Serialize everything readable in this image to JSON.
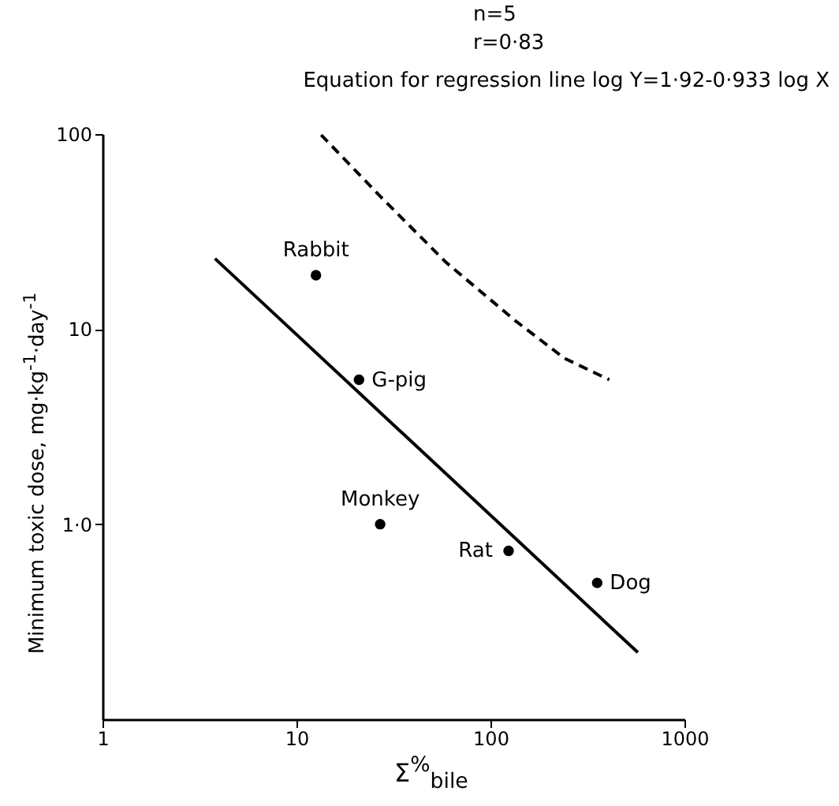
{
  "chart_data": {
    "type": "scatter",
    "title": "Equation for regression line log Y=1·92-0·933 log X",
    "xlabel": "Σ$^{%}$$_{bile}$",
    "ylabel": "Minimum toxic dose, mg·kg$^{-1}$·day$^{-1}$",
    "annotations": [
      "n=5",
      "r=0·83",
      {
        "text": "Rabbit",
        "x": 12.6,
        "y": 18.9
      },
      {
        "text": "G-pig",
        "x": 21,
        "y": 5.5
      },
      {
        "text": "Monkey",
        "x": 27,
        "y": 1.0
      },
      {
        "text": "Rat",
        "x": 124,
        "y": 0.73
      },
      {
        "text": "Dog",
        "x": 355,
        "y": 0.5
      }
    ],
    "log": "xy",
    "xlim": [
      1,
      1000
    ],
    "ylim": [
      0.1,
      100
    ],
    "xticks": [
      1,
      10,
      100,
      1000
    ],
    "yticks": [
      {
        "value": 1,
        "label": "1·0"
      },
      10,
      100
    ],
    "series": [
      {
        "type": "scatter",
        "color": "#000000",
        "marker": "circle",
        "x": [
          12.6,
          21,
          27,
          124,
          355
        ],
        "values": [
          18.9,
          5.5,
          1.0,
          0.73,
          0.5
        ]
      },
      {
        "type": "line",
        "color": "#000000",
        "line_style": "solid",
        "x": [
          3.8,
          575
        ],
        "values": [
          23,
          0.22
        ]
      },
      {
        "type": "line",
        "color": "#000000",
        "line_style": "dashed",
        "x": [
          13.4,
          27,
          59,
          135,
          240,
          410
        ],
        "values": [
          99,
          48,
          22,
          11,
          7.1,
          5.5
        ]
      }
    ]
  }
}
